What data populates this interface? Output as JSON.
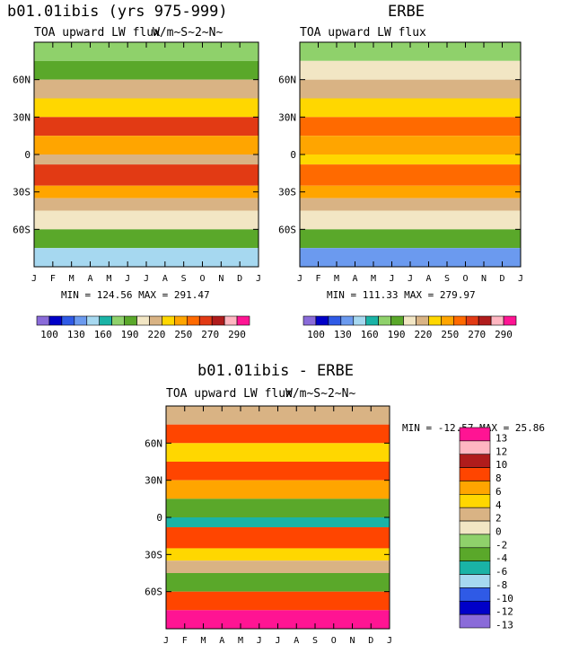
{
  "chart_data": [
    {
      "type": "heatmap",
      "name": "model",
      "title": "b01.01ibis (yrs 975-999)",
      "subtitle": "TOA upward LW flux",
      "units_overlay": "W/m~S~2~N~",
      "x_ticks": [
        "J",
        "F",
        "M",
        "A",
        "M",
        "J",
        "J",
        "A",
        "S",
        "O",
        "N",
        "D",
        "J"
      ],
      "y_ticks": [
        "60N",
        "30N",
        "0",
        "30S",
        "60S"
      ],
      "y_range": [
        -90,
        90
      ],
      "stats": "MIN = 124.56 MAX = 291.47",
      "colorbar_labels": [
        "100",
        "130",
        "160",
        "190",
        "220",
        "250",
        "270",
        "290"
      ],
      "lat_bands": [
        {
          "lat": [
            75,
            90
          ],
          "value": 175
        },
        {
          "lat": [
            60,
            75
          ],
          "value": 200
        },
        {
          "lat": [
            45,
            60
          ],
          "value": 220
        },
        {
          "lat": [
            30,
            45
          ],
          "value": 245
        },
        {
          "lat": [
            15,
            30
          ],
          "value": 270
        },
        {
          "lat": [
            0,
            15
          ],
          "value": 250
        },
        {
          "lat": [
            -8,
            0
          ],
          "value": 225
        },
        {
          "lat": [
            -25,
            -8
          ],
          "value": 275
        },
        {
          "lat": [
            -35,
            -25
          ],
          "value": 255
        },
        {
          "lat": [
            -45,
            -35
          ],
          "value": 230
        },
        {
          "lat": [
            -60,
            -45
          ],
          "value": 210
        },
        {
          "lat": [
            -75,
            -60
          ],
          "value": 190
        },
        {
          "lat": [
            -90,
            -75
          ],
          "value": 155
        }
      ]
    },
    {
      "type": "heatmap",
      "name": "obs",
      "title": "ERBE",
      "subtitle": "TOA upward LW flux",
      "x_ticks": [
        "J",
        "F",
        "M",
        "A",
        "M",
        "J",
        "J",
        "A",
        "S",
        "O",
        "N",
        "D",
        "J"
      ],
      "y_ticks": [
        "60N",
        "30N",
        "0",
        "30S",
        "60S"
      ],
      "y_range": [
        -90,
        90
      ],
      "stats": "MIN = 111.33 MAX = 279.97",
      "colorbar_labels": [
        "100",
        "130",
        "160",
        "190",
        "220",
        "250",
        "270",
        "290"
      ],
      "lat_bands": [
        {
          "lat": [
            75,
            90
          ],
          "value": 180
        },
        {
          "lat": [
            60,
            75
          ],
          "value": 205
        },
        {
          "lat": [
            45,
            60
          ],
          "value": 222
        },
        {
          "lat": [
            30,
            45
          ],
          "value": 248
        },
        {
          "lat": [
            15,
            30
          ],
          "value": 268
        },
        {
          "lat": [
            0,
            15
          ],
          "value": 255
        },
        {
          "lat": [
            -8,
            0
          ],
          "value": 240
        },
        {
          "lat": [
            -25,
            -8
          ],
          "value": 268
        },
        {
          "lat": [
            -35,
            -25
          ],
          "value": 255
        },
        {
          "lat": [
            -45,
            -35
          ],
          "value": 232
        },
        {
          "lat": [
            -60,
            -45
          ],
          "value": 212
        },
        {
          "lat": [
            -75,
            -60
          ],
          "value": 190
        },
        {
          "lat": [
            -90,
            -75
          ],
          "value": 130
        }
      ]
    },
    {
      "type": "heatmap",
      "name": "diff",
      "title": "b01.01ibis - ERBE",
      "subtitle": "TOA upward LW flux",
      "units_overlay": "W/m~S~2~N~",
      "x_ticks": [
        "J",
        "F",
        "M",
        "A",
        "M",
        "J",
        "J",
        "A",
        "S",
        "O",
        "N",
        "D",
        "J"
      ],
      "y_ticks": [
        "60N",
        "30N",
        "0",
        "30S",
        "60S"
      ],
      "y_range": [
        -90,
        90
      ],
      "stats": "MIN = -12.57 MAX =  25.86",
      "colorbar_labels": [
        "13",
        "12",
        "10",
        "8",
        "6",
        "4",
        "2",
        "0",
        "-2",
        "-4",
        "-6",
        "-8",
        "-10",
        "-12",
        "-13"
      ],
      "lat_bands": [
        {
          "lat": [
            75,
            90
          ],
          "value": 3
        },
        {
          "lat": [
            60,
            75
          ],
          "value": 9
        },
        {
          "lat": [
            45,
            60
          ],
          "value": 5
        },
        {
          "lat": [
            30,
            45
          ],
          "value": 8
        },
        {
          "lat": [
            15,
            30
          ],
          "value": 7
        },
        {
          "lat": [
            0,
            15
          ],
          "value": -4
        },
        {
          "lat": [
            -8,
            0
          ],
          "value": -6
        },
        {
          "lat": [
            -25,
            -8
          ],
          "value": 9
        },
        {
          "lat": [
            -35,
            -25
          ],
          "value": 5
        },
        {
          "lat": [
            -45,
            -35
          ],
          "value": 2
        },
        {
          "lat": [
            -60,
            -45
          ],
          "value": -3
        },
        {
          "lat": [
            -75,
            -60
          ],
          "value": 8
        },
        {
          "lat": [
            -90,
            -75
          ],
          "value": 14
        }
      ]
    }
  ],
  "colors": {
    "abs_scale": [
      "#8a6bd9",
      "#0000c8",
      "#2f5ae6",
      "#6b9aef",
      "#a6d8f0",
      "#1ab3a6",
      "#8fd16b",
      "#5aa82a",
      "#f2e6c4",
      "#d9b384",
      "#ffd700",
      "#ffa500",
      "#ff6a00",
      "#e23a14",
      "#b01c1c",
      "#ffb6c1",
      "#ff1493"
    ],
    "abs_levels": [
      100,
      115,
      130,
      145,
      160,
      175,
      190,
      205,
      220,
      235,
      250,
      260,
      270,
      280,
      290
    ],
    "diff_scale": [
      "#ff1493",
      "#ffb6c1",
      "#b01c1c",
      "#ff4500",
      "#ffa500",
      "#ffd700",
      "#d9b384",
      "#f2e6c4",
      "#8fd16b",
      "#5aa82a",
      "#1ab3a6",
      "#a6d8f0",
      "#2f5ae6",
      "#0000c8",
      "#8a6bd9"
    ],
    "diff_levels": [
      13,
      12,
      10,
      8,
      6,
      4,
      2,
      0,
      -2,
      -4,
      -6,
      -8,
      -10,
      -12,
      -13
    ]
  }
}
